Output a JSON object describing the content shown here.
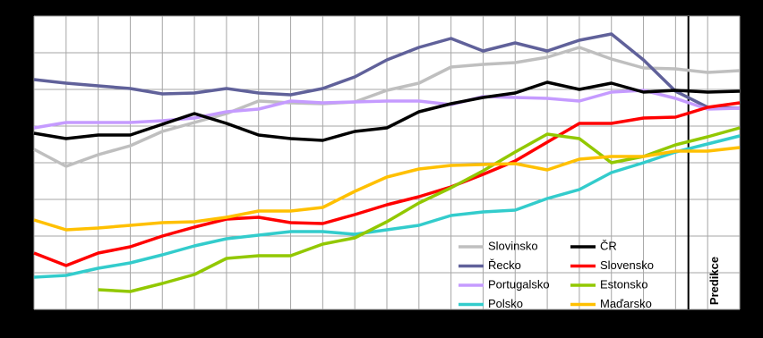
{
  "chart_data": {
    "type": "line",
    "categories": [
      null,
      null,
      null,
      null,
      null,
      null,
      null,
      null,
      null,
      null,
      null,
      null,
      null,
      null,
      null,
      null,
      null,
      null,
      null,
      null,
      null,
      null,
      null
    ],
    "ylim": [
      0,
      328
    ],
    "yticks": [
      0,
      41,
      82,
      123,
      164,
      205,
      246,
      287,
      328
    ],
    "grid": true,
    "legend": "bottom-right",
    "annotations": [
      {
        "text": "Predikce",
        "x": 20.4
      }
    ],
    "series": [
      {
        "name": "Slovinsko",
        "color": "#bfbfbf",
        "values": [
          179,
          160,
          173,
          183,
          199,
          209,
          219,
          233,
          231,
          230,
          232,
          245,
          253,
          271,
          274,
          276,
          282,
          293,
          280,
          270,
          269,
          265,
          267
        ]
      },
      {
        "name": "Řecko",
        "color": "#60619a",
        "values": [
          257,
          253,
          250,
          247,
          241,
          242,
          247,
          242,
          240,
          247,
          260,
          279,
          293,
          303,
          289,
          298,
          289,
          301,
          308,
          279,
          244,
          226,
          225
        ]
      },
      {
        "name": "Portugalsko",
        "color": "#c59bff",
        "values": [
          203,
          209,
          209,
          209,
          211,
          214,
          221,
          224,
          233,
          231,
          232,
          233,
          233,
          229,
          238,
          237,
          236,
          233,
          243,
          245,
          236,
          224,
          225
        ]
      },
      {
        "name": "Polsko",
        "color": "#33cccc",
        "values": [
          36,
          38,
          46,
          52,
          61,
          71,
          79,
          83,
          87,
          87,
          84,
          89,
          94,
          105,
          109,
          111,
          124,
          134,
          153,
          164,
          176,
          185,
          194
        ]
      },
      {
        "name": "ČR",
        "color": "#000000",
        "values": [
          197,
          191,
          195,
          195,
          207,
          219,
          208,
          195,
          191,
          189,
          199,
          203,
          221,
          230,
          237,
          242,
          254,
          246,
          253,
          243,
          245,
          243,
          244
        ]
      },
      {
        "name": "Slovensko",
        "color": "#ff0000",
        "values": [
          63,
          49,
          63,
          70,
          82,
          92,
          101,
          103,
          97,
          96,
          106,
          117,
          126,
          137,
          151,
          166,
          187,
          208,
          208,
          214,
          215,
          226,
          231
        ]
      },
      {
        "name": "Estonsko",
        "color": "#92c800",
        "values": [
          null,
          null,
          22,
          20,
          29,
          39,
          57,
          60,
          60,
          73,
          80,
          98,
          119,
          136,
          155,
          176,
          196,
          191,
          164,
          171,
          184,
          193,
          203
        ]
      },
      {
        "name": "Maďarsko",
        "color": "#ffc000",
        "values": [
          100,
          89,
          91,
          94,
          97,
          98,
          103,
          110,
          110,
          114,
          132,
          148,
          157,
          161,
          162,
          163,
          156,
          168,
          171,
          171,
          177,
          177,
          181
        ]
      }
    ]
  }
}
